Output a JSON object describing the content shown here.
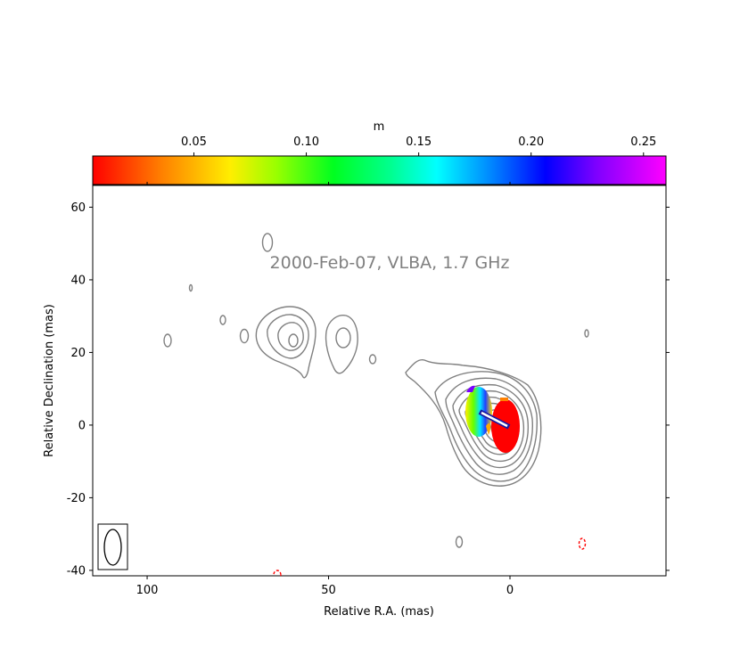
{
  "chart_data": {
    "type": "contour",
    "annotation": "2000-Feb-07, VLBA, 1.7 GHz",
    "xlabel": "Relative R.A. (mas)",
    "ylabel": "Relative Declination (mas)",
    "xlim": [
      115,
      -43
    ],
    "ylim": [
      -41.5,
      66
    ],
    "x_ticks": [
      100,
      50,
      0
    ],
    "x_tick_labels": [
      "100",
      "50",
      "0"
    ],
    "y_ticks": [
      60,
      40,
      20,
      0,
      -20,
      -40
    ],
    "y_tick_labels": [
      "60",
      "40",
      "20",
      "0",
      "-20",
      "-40"
    ],
    "colorbar": {
      "label": "m",
      "range": [
        0.005,
        0.26
      ],
      "ticks": [
        0.05,
        0.1,
        0.15,
        0.2,
        0.25
      ],
      "tick_labels": [
        "0.05",
        "0.10",
        "0.15",
        "0.20",
        "0.25"
      ],
      "colors": [
        "#ff0000",
        "#ffaa00",
        "#ffff00",
        "#66ff00",
        "#00ff33",
        "#00ffff",
        "#0066ff",
        "#0000ff",
        "#7a00ff",
        "#ff00ff"
      ]
    },
    "contour_color": "#808080",
    "negative_contour_color": "#ff0000",
    "core": {
      "x": 0,
      "y": 3,
      "m": 0.01
    },
    "component": {
      "x": 8.5,
      "y": 4,
      "m_min": 0.06,
      "m_max": 0.21
    },
    "evpa_vector": {
      "x0": 0,
      "y0": 0,
      "x1": 8,
      "y1": 4
    }
  }
}
